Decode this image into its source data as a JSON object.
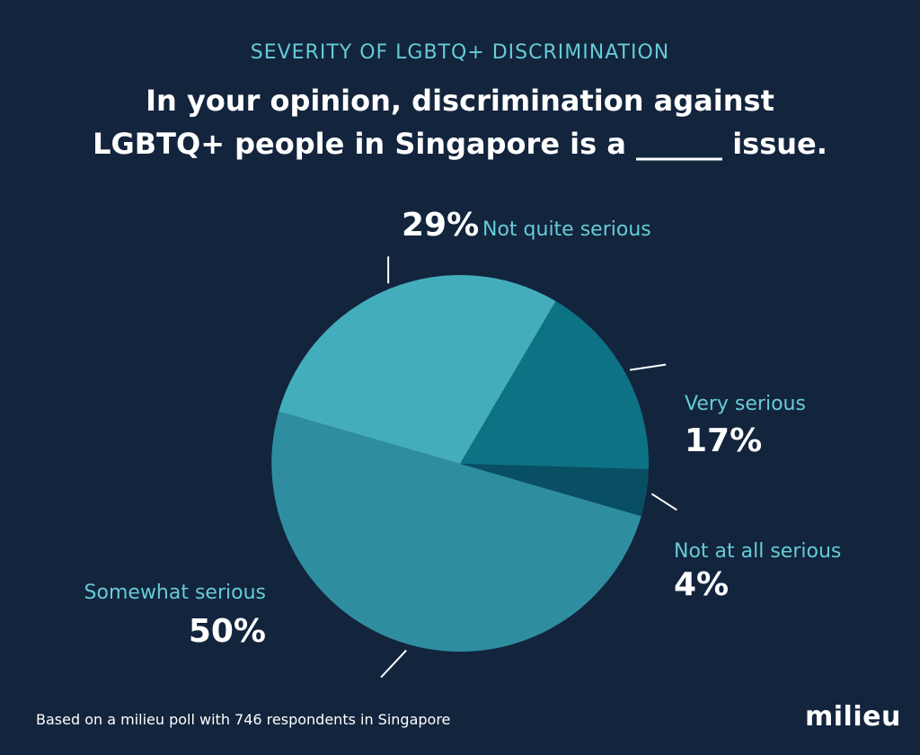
{
  "chart_data": {
    "type": "pie",
    "subtitle": "SEVERITY OF LGBTQ+ DISCRIMINATION",
    "title": "In your opinion, discrimination against LGBTQ+ people in Singapore is a ______ issue.",
    "slices": [
      {
        "label": "Very serious",
        "value": 17,
        "value_label": "17%",
        "color": "#0d7283"
      },
      {
        "label": "Not at all serious",
        "value": 4,
        "value_label": "4%",
        "color": "#084f63"
      },
      {
        "label": "Somewhat serious",
        "value": 50,
        "value_label": "50%",
        "color": "#2e8ea0"
      },
      {
        "label": "Not quite serious",
        "value": 29,
        "value_label": "29%",
        "color": "#44adbb"
      }
    ],
    "colors": {
      "background": "#13243d",
      "accent": "#66cbd6",
      "text": "#ffffff"
    }
  },
  "footer": {
    "note": "Based on a milieu poll with 746 respondents in Singapore",
    "logo": "milieu"
  }
}
